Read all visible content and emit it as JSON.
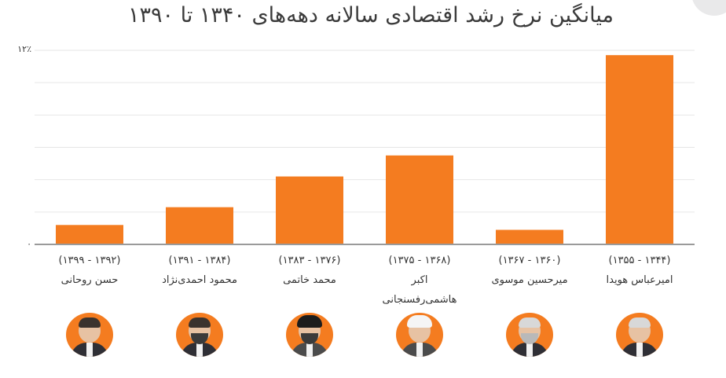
{
  "chart_data": {
    "type": "bar",
    "title": "میانگین نرخ رشد اقتصادی سالانه دهه‌های ۱۳۴۰ تا ۱۳۹۰",
    "ylim": [
      0,
      12
    ],
    "y_ticks": [
      "۰",
      "۱۲٪"
    ],
    "grid": true,
    "bar_color": "#f47c20",
    "categories": [
      {
        "period": "(۱۳۹۲ - ۱۳۹۹)",
        "name": "حسن روحانی",
        "name2": "",
        "value": 1.2
      },
      {
        "period": "(۱۳۸۴ - ۱۳۹۱)",
        "name": "محمود احمدی‌نژاد",
        "name2": "",
        "value": 2.3
      },
      {
        "period": "(۱۳۷۶ - ۱۳۸۳)",
        "name": "محمد خاتمی",
        "name2": "",
        "value": 4.2
      },
      {
        "period": "(۱۳۶۸ - ۱۳۷۵)",
        "name": "اکبر",
        "name2": "هاشمی‌رفسنجانی",
        "value": 5.5
      },
      {
        "period": "(۱۳۶۰ - ۱۳۶۷)",
        "name": "میرحسین موسوی",
        "name2": "",
        "value": 0.9
      },
      {
        "period": "(۱۳۴۴ - ۱۳۵۵)",
        "name": "امیرعباس هویدا",
        "name2": "",
        "value": 11.7
      }
    ]
  },
  "colors": {
    "accent": "#f47c20",
    "axis": "#9a9a9a",
    "grid": "#e6e6e6",
    "text": "#333333"
  },
  "avatars": [
    {
      "icon": "portrait-icon",
      "style": "plain"
    },
    {
      "icon": "portrait-icon",
      "style": "beard"
    },
    {
      "icon": "portrait-icon",
      "style": "black-turban beard robe"
    },
    {
      "icon": "portrait-icon",
      "style": "turban robe"
    },
    {
      "icon": "portrait-icon",
      "style": "white-hair grey-beard"
    },
    {
      "icon": "portrait-icon",
      "style": "white-hair"
    }
  ]
}
